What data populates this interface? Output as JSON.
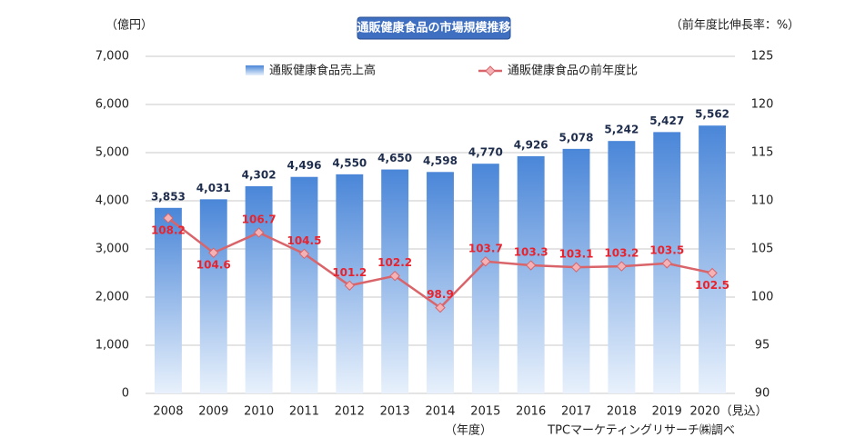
{
  "chart_data": {
    "type": "bar_line",
    "title": "通販健康食品の市場規模推移",
    "y_label": "（億円）",
    "y2_label": "（前年度比伸長率：%）",
    "x_label": "（年度）",
    "source": "TPCマーケティングリサーチ㈱調べ",
    "categories": [
      "2008",
      "2009",
      "2010",
      "2011",
      "2012",
      "2013",
      "2014",
      "2015",
      "2016",
      "2017",
      "2018",
      "2019",
      "2020（見込）"
    ],
    "series": [
      {
        "name": "通販健康食品売上高",
        "type": "bar",
        "color": "#4a86d8",
        "values": [
          3853,
          4031,
          4302,
          4496,
          4550,
          4650,
          4598,
          4770,
          4926,
          5078,
          5242,
          5427,
          5562
        ],
        "value_labels": [
          "3,853",
          "4,031",
          "4,302",
          "4,496",
          "4,550",
          "4,650",
          "4,598",
          "4,770",
          "4,926",
          "5,078",
          "5,242",
          "5,427",
          "5,562"
        ]
      },
      {
        "name": "通販健康食品の前年度比",
        "type": "line",
        "axis": "y2",
        "color": "#d9646a",
        "values": [
          108.2,
          104.6,
          106.7,
          104.5,
          101.2,
          102.2,
          98.9,
          103.7,
          103.3,
          103.1,
          103.2,
          103.5,
          102.5
        ]
      }
    ],
    "ylim": [
      0,
      7000
    ],
    "yticks": [
      0,
      {
        "value": 1000,
        "label": "1,000"
      },
      {
        "value": 2000,
        "label": "2,000"
      },
      {
        "value": 3000,
        "label": "3,000"
      },
      {
        "value": 4000,
        "label": "4,000"
      },
      {
        "value": 5000,
        "label": "5,000"
      },
      {
        "value": 6000,
        "label": "6,000"
      },
      {
        "value": 7000,
        "label": "7,000"
      }
    ],
    "y2lim": [
      90,
      125
    ],
    "y2ticks": [
      90,
      95,
      100,
      105,
      110,
      115,
      120,
      125
    ],
    "grid": true
  }
}
